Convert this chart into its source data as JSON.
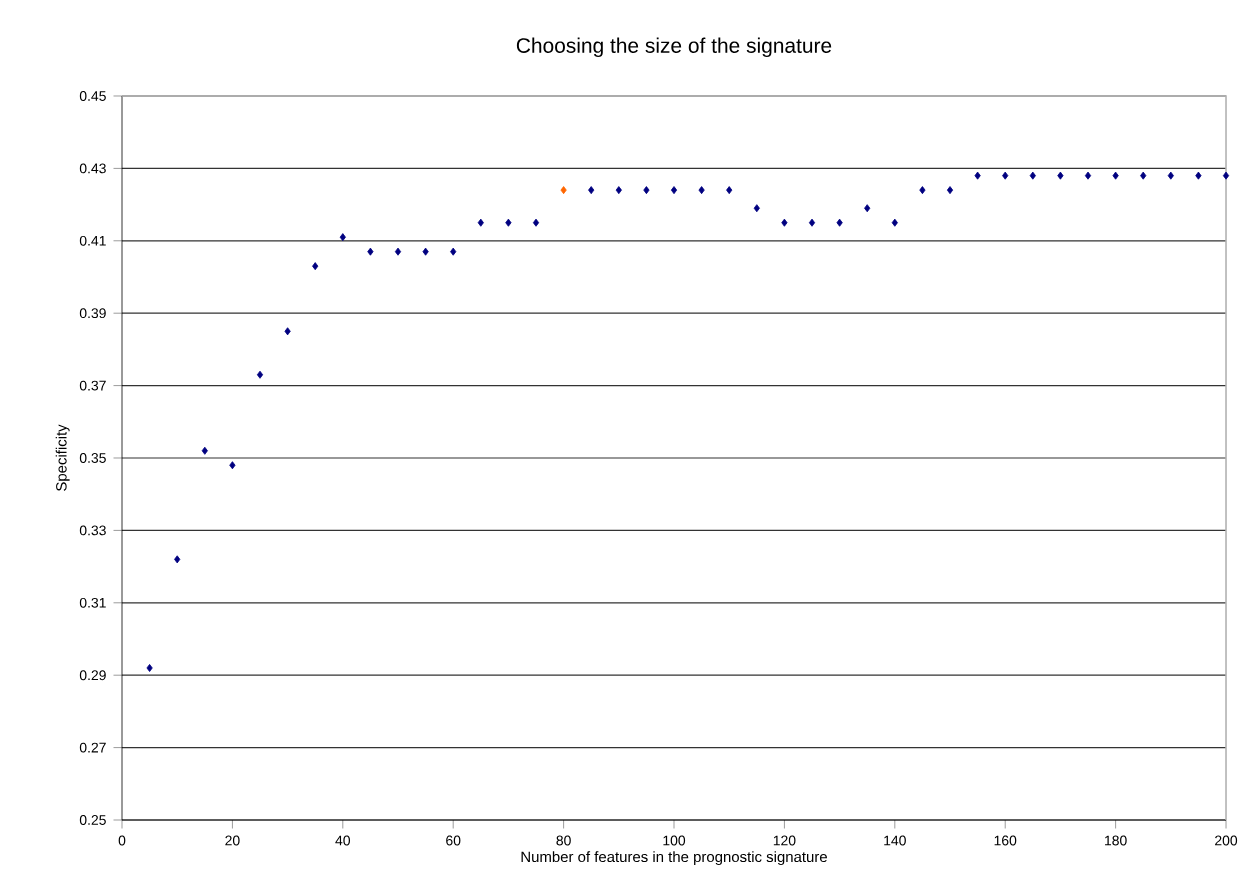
{
  "chart_data": {
    "type": "scatter",
    "title": "Choosing the size of the signature",
    "xlabel": "Number of features in the prognostic signature",
    "ylabel": "Specificity",
    "x": [
      5,
      10,
      15,
      20,
      25,
      30,
      35,
      40,
      45,
      50,
      55,
      60,
      65,
      70,
      75,
      80,
      85,
      90,
      95,
      100,
      105,
      110,
      115,
      120,
      125,
      130,
      135,
      140,
      145,
      150,
      155,
      160,
      165,
      170,
      175,
      180,
      185,
      190,
      195,
      200
    ],
    "values": [
      0.292,
      0.322,
      0.352,
      0.348,
      0.373,
      0.385,
      0.403,
      0.411,
      0.407,
      0.407,
      0.407,
      0.407,
      0.415,
      0.415,
      0.415,
      0.424,
      0.424,
      0.424,
      0.424,
      0.424,
      0.424,
      0.424,
      0.419,
      0.415,
      0.415,
      0.415,
      0.419,
      0.415,
      0.424,
      0.424,
      0.428,
      0.428,
      0.428,
      0.428,
      0.428,
      0.428,
      0.428,
      0.428,
      0.428,
      0.428
    ],
    "colors": [
      "#000080",
      "#000080",
      "#000080",
      "#000080",
      "#000080",
      "#000080",
      "#000080",
      "#000080",
      "#000080",
      "#000080",
      "#000080",
      "#000080",
      "#000080",
      "#000080",
      "#000080",
      "#ff6600",
      "#000080",
      "#000080",
      "#000080",
      "#000080",
      "#000080",
      "#000080",
      "#000080",
      "#000080",
      "#000080",
      "#000080",
      "#000080",
      "#000080",
      "#000080",
      "#000080",
      "#000080",
      "#000080",
      "#000080",
      "#000080",
      "#000080",
      "#000080",
      "#000080",
      "#000080",
      "#000080",
      "#000080"
    ],
    "xlim": [
      0,
      200
    ],
    "xticks": [
      0,
      20,
      40,
      60,
      80,
      100,
      120,
      140,
      160,
      180,
      200
    ],
    "ylim": [
      0.25,
      0.45
    ],
    "yticks": [
      0.25,
      0.27,
      0.29,
      0.31,
      0.33,
      0.35,
      0.37,
      0.39,
      0.41,
      0.43,
      0.45
    ],
    "grid": "y",
    "marker": "diamond"
  }
}
